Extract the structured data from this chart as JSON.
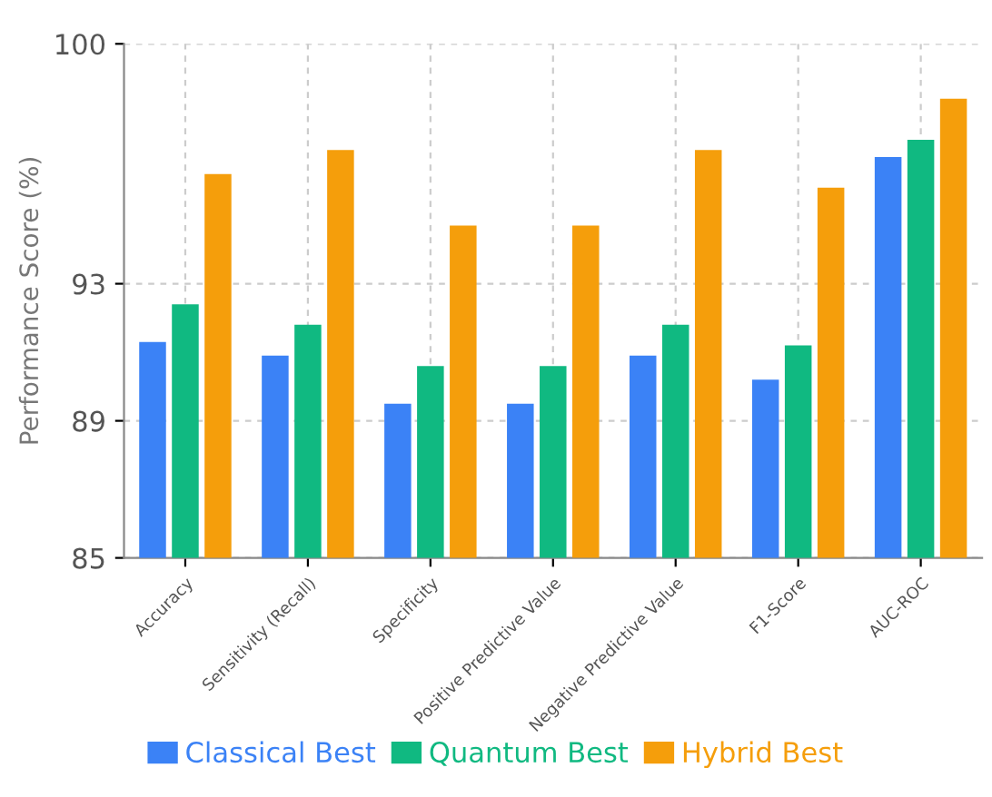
{
  "chart_data": {
    "type": "bar",
    "ylabel": "Performance Score (%)",
    "categories": [
      "Accuracy",
      "Sensitivity (Recall)",
      "Specificity",
      "Positive Predictive Value",
      "Negative Predictive Value",
      "F1-Score",
      "AUC-ROC"
    ],
    "series": [
      {
        "name": "Classical Best",
        "color": "#3b82f6",
        "values": [
          91.3,
          90.9,
          89.5,
          89.5,
          90.9,
          90.2,
          96.7
        ]
      },
      {
        "name": "Quantum Best",
        "color": "#10b981",
        "values": [
          92.4,
          91.8,
          90.6,
          90.6,
          91.8,
          91.2,
          97.2
        ]
      },
      {
        "name": "Hybrid Best",
        "color": "#f59e0b",
        "values": [
          96.2,
          96.9,
          94.7,
          94.7,
          96.9,
          95.8,
          98.4
        ]
      }
    ],
    "ylim": [
      85,
      100
    ],
    "yticks": [
      85,
      89,
      93,
      100
    ],
    "grid": true,
    "legend": "bottom"
  }
}
